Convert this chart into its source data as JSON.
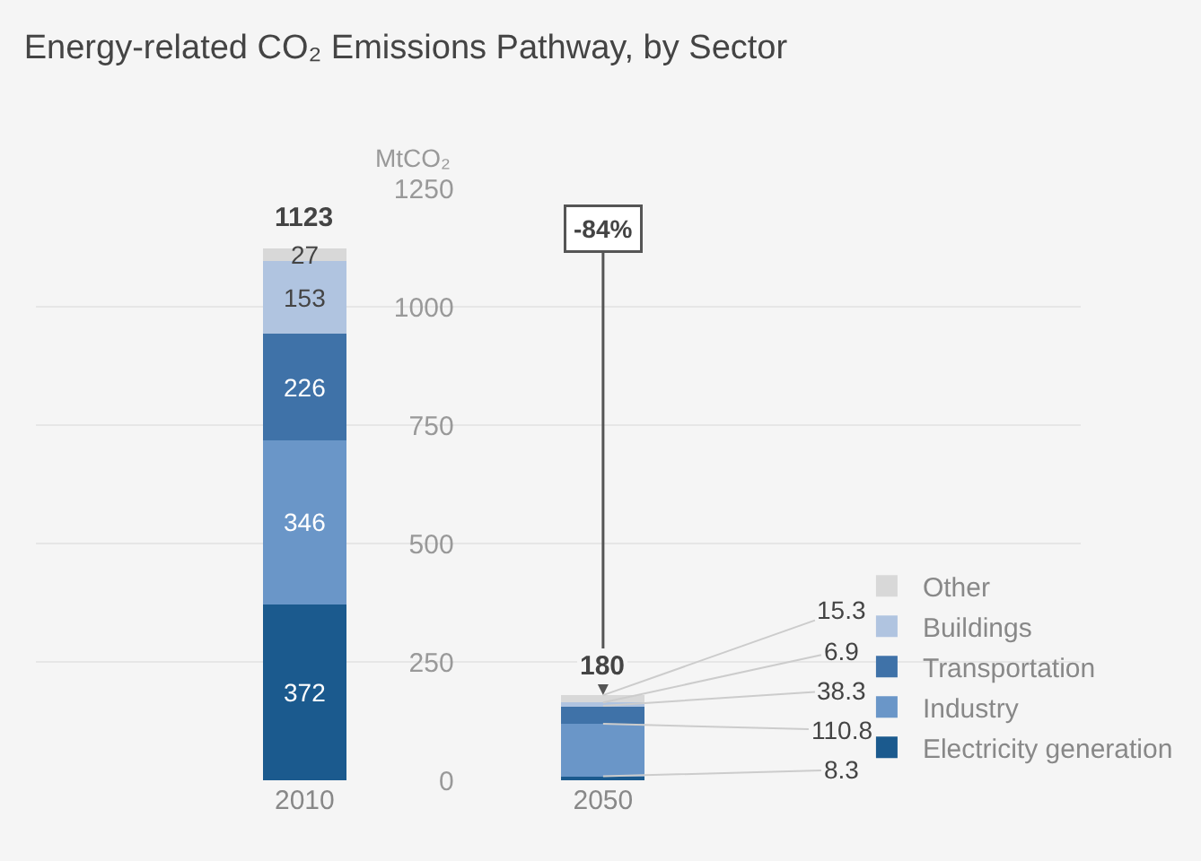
{
  "chart_data": {
    "type": "bar",
    "title": "Energy-related CO₂ Emissions Pathway, by Sector",
    "ylabel": "MtCO₂",
    "categories": [
      "2010",
      "2050"
    ],
    "stacked": true,
    "totals": [
      "1123",
      "180"
    ],
    "series": [
      {
        "name": "Electricity generation",
        "color": "#1b5a8e",
        "values": [
          372,
          8.3
        ],
        "value_labels": [
          "372",
          null
        ]
      },
      {
        "name": "Industry",
        "color": "#6a96c8",
        "values": [
          346,
          110.8
        ],
        "value_labels": [
          "346",
          null
        ]
      },
      {
        "name": "Transportation",
        "color": "#3f72a8",
        "values": [
          226,
          38.3
        ],
        "value_labels": [
          "226",
          null
        ]
      },
      {
        "name": "Buildings",
        "color": "#b0c4e0",
        "values": [
          153,
          6.9
        ],
        "value_labels": [
          "153",
          null
        ]
      },
      {
        "name": "Other",
        "color": "#d8d8d8",
        "values": [
          27,
          15.3
        ],
        "value_labels": [
          "27",
          null
        ]
      }
    ],
    "annotations": [
      {
        "text": "-84%",
        "x": "2050",
        "y": 180
      },
      {
        "text": "8.3",
        "x": "2050",
        "y": 8.3
      },
      {
        "text": "110.8",
        "x": "2050",
        "y": 119.1
      },
      {
        "text": "38.3",
        "x": "2050",
        "y": 157.4
      },
      {
        "text": "6.9",
        "x": "2050",
        "y": 164.3
      },
      {
        "text": "15.3",
        "x": "2050",
        "y": 179.6
      }
    ],
    "ylim": [
      0,
      1250
    ],
    "yticks": [
      0,
      250,
      500,
      750,
      1000,
      1250
    ],
    "grid": "y",
    "legend": "right"
  }
}
